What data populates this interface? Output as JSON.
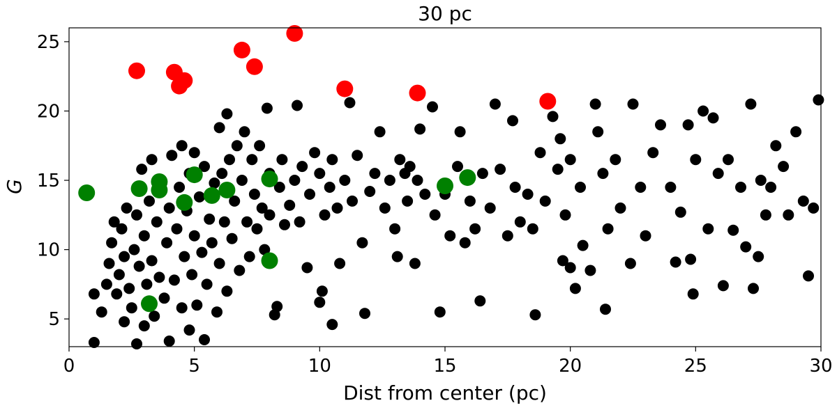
{
  "chart_data": {
    "type": "scatter",
    "title": "30 pc",
    "xlabel": "Dist from center (pc)",
    "ylabel": "G",
    "xlim": [
      0,
      30
    ],
    "ylim": [
      3,
      26
    ],
    "xticks": [
      0,
      5,
      10,
      15,
      20,
      25,
      30
    ],
    "yticks": [
      5,
      10,
      15,
      20,
      25
    ],
    "grid": false,
    "series": [
      {
        "color": "#000000",
        "marker_size": "medium",
        "points": [
          [
            1.0,
            3.3
          ],
          [
            1.0,
            6.8
          ],
          [
            1.3,
            5.5
          ],
          [
            1.5,
            7.5
          ],
          [
            1.6,
            9.0
          ],
          [
            1.7,
            10.5
          ],
          [
            1.8,
            12.0
          ],
          [
            1.9,
            6.8
          ],
          [
            2.0,
            8.2
          ],
          [
            2.1,
            11.5
          ],
          [
            2.2,
            4.8
          ],
          [
            2.2,
            9.5
          ],
          [
            2.3,
            13.0
          ],
          [
            2.4,
            7.2
          ],
          [
            2.5,
            5.8
          ],
          [
            2.6,
            10.0
          ],
          [
            2.7,
            3.2
          ],
          [
            2.7,
            12.5
          ],
          [
            2.8,
            8.8
          ],
          [
            2.9,
            15.8
          ],
          [
            3.0,
            4.5
          ],
          [
            3.0,
            11.0
          ],
          [
            3.1,
            7.5
          ],
          [
            3.2,
            13.5
          ],
          [
            3.3,
            9.2
          ],
          [
            3.3,
            16.5
          ],
          [
            3.4,
            5.2
          ],
          [
            3.5,
            12.0
          ],
          [
            3.6,
            8.0
          ],
          [
            3.7,
            14.8
          ],
          [
            3.8,
            6.5
          ],
          [
            3.9,
            10.5
          ],
          [
            4.0,
            3.4
          ],
          [
            4.0,
            13.0
          ],
          [
            4.1,
            16.8
          ],
          [
            4.2,
            7.8
          ],
          [
            4.3,
            11.5
          ],
          [
            4.4,
            14.5
          ],
          [
            4.5,
            5.8
          ],
          [
            4.5,
            17.5
          ],
          [
            4.6,
            9.5
          ],
          [
            4.7,
            12.8
          ],
          [
            4.8,
            4.2
          ],
          [
            4.8,
            15.5
          ],
          [
            4.9,
            8.2
          ],
          [
            5.0,
            11.0
          ],
          [
            5.0,
            17.0
          ],
          [
            5.1,
            6.0
          ],
          [
            5.2,
            13.8
          ],
          [
            5.3,
            9.8
          ],
          [
            5.4,
            3.5
          ],
          [
            5.4,
            16.0
          ],
          [
            5.5,
            7.5
          ],
          [
            5.6,
            12.2
          ],
          [
            5.7,
            10.5
          ],
          [
            5.8,
            14.8
          ],
          [
            5.9,
            5.5
          ],
          [
            6.0,
            18.8
          ],
          [
            6.0,
            9.0
          ],
          [
            6.1,
            15.5
          ],
          [
            6.2,
            12.0
          ],
          [
            6.3,
            19.8
          ],
          [
            6.3,
            7.0
          ],
          [
            6.4,
            16.5
          ],
          [
            6.5,
            10.8
          ],
          [
            6.6,
            13.5
          ],
          [
            6.7,
            17.5
          ],
          [
            6.8,
            8.5
          ],
          [
            6.9,
            15.0
          ],
          [
            7.0,
            18.5
          ],
          [
            7.1,
            12.0
          ],
          [
            7.2,
            9.5
          ],
          [
            7.3,
            16.5
          ],
          [
            7.4,
            14.0
          ],
          [
            7.5,
            11.5
          ],
          [
            7.6,
            17.5
          ],
          [
            7.7,
            13.0
          ],
          [
            7.8,
            10.0
          ],
          [
            7.9,
            20.2
          ],
          [
            8.0,
            15.5
          ],
          [
            8.0,
            12.5
          ],
          [
            8.2,
            5.3
          ],
          [
            8.3,
            5.9
          ],
          [
            8.4,
            14.5
          ],
          [
            8.5,
            16.5
          ],
          [
            8.6,
            11.8
          ],
          [
            8.8,
            13.2
          ],
          [
            9.0,
            15.0
          ],
          [
            9.1,
            20.4
          ],
          [
            9.2,
            12.0
          ],
          [
            9.3,
            16.0
          ],
          [
            9.5,
            8.7
          ],
          [
            9.6,
            14.0
          ],
          [
            9.8,
            17.0
          ],
          [
            10.0,
            6.2
          ],
          [
            10.0,
            15.5
          ],
          [
            10.1,
            7.0
          ],
          [
            10.2,
            12.5
          ],
          [
            10.4,
            14.5
          ],
          [
            10.5,
            4.6
          ],
          [
            10.5,
            16.5
          ],
          [
            10.7,
            13.0
          ],
          [
            10.8,
            9.0
          ],
          [
            11.0,
            15.0
          ],
          [
            11.2,
            20.6
          ],
          [
            11.3,
            13.5
          ],
          [
            11.5,
            16.8
          ],
          [
            11.7,
            10.5
          ],
          [
            11.8,
            5.4
          ],
          [
            12.0,
            14.2
          ],
          [
            12.2,
            15.5
          ],
          [
            12.4,
            18.5
          ],
          [
            12.6,
            13.0
          ],
          [
            12.8,
            15.0
          ],
          [
            13.0,
            11.5
          ],
          [
            13.1,
            9.5
          ],
          [
            13.2,
            16.5
          ],
          [
            13.4,
            15.5
          ],
          [
            13.5,
            13.5
          ],
          [
            13.6,
            16.0
          ],
          [
            13.8,
            9.0
          ],
          [
            13.9,
            15.0
          ],
          [
            14.0,
            18.7
          ],
          [
            14.2,
            14.0
          ],
          [
            14.5,
            20.3
          ],
          [
            14.6,
            12.5
          ],
          [
            14.8,
            5.5
          ],
          [
            15.0,
            14.0
          ],
          [
            15.2,
            11.0
          ],
          [
            15.5,
            16.0
          ],
          [
            15.6,
            18.5
          ],
          [
            15.8,
            10.5
          ],
          [
            16.0,
            13.5
          ],
          [
            16.2,
            11.5
          ],
          [
            16.4,
            6.3
          ],
          [
            16.5,
            15.5
          ],
          [
            16.8,
            13.0
          ],
          [
            17.0,
            20.5
          ],
          [
            17.2,
            15.8
          ],
          [
            17.5,
            11.0
          ],
          [
            17.7,
            19.3
          ],
          [
            17.8,
            14.5
          ],
          [
            18.0,
            12.0
          ],
          [
            18.3,
            14.0
          ],
          [
            18.5,
            11.5
          ],
          [
            18.6,
            5.3
          ],
          [
            18.8,
            17.0
          ],
          [
            19.0,
            13.5
          ],
          [
            19.3,
            19.6
          ],
          [
            19.5,
            15.8
          ],
          [
            19.6,
            18.0
          ],
          [
            19.7,
            9.2
          ],
          [
            19.8,
            12.5
          ],
          [
            20.0,
            16.5
          ],
          [
            20.0,
            8.7
          ],
          [
            20.2,
            7.2
          ],
          [
            20.4,
            14.5
          ],
          [
            20.5,
            10.3
          ],
          [
            20.8,
            8.5
          ],
          [
            21.0,
            20.5
          ],
          [
            21.1,
            18.5
          ],
          [
            21.3,
            15.5
          ],
          [
            21.4,
            5.7
          ],
          [
            21.5,
            11.5
          ],
          [
            21.8,
            16.5
          ],
          [
            22.0,
            13.0
          ],
          [
            22.4,
            9.0
          ],
          [
            22.5,
            20.5
          ],
          [
            22.8,
            14.5
          ],
          [
            23.0,
            11.0
          ],
          [
            23.3,
            17.0
          ],
          [
            23.6,
            19.0
          ],
          [
            24.0,
            14.5
          ],
          [
            24.2,
            9.1
          ],
          [
            24.4,
            12.7
          ],
          [
            24.7,
            19.0
          ],
          [
            24.8,
            9.3
          ],
          [
            24.9,
            6.8
          ],
          [
            25.0,
            16.5
          ],
          [
            25.3,
            20.0
          ],
          [
            25.5,
            11.5
          ],
          [
            25.7,
            19.5
          ],
          [
            25.9,
            15.5
          ],
          [
            26.1,
            7.4
          ],
          [
            26.3,
            16.5
          ],
          [
            26.5,
            11.4
          ],
          [
            26.8,
            14.5
          ],
          [
            27.0,
            10.2
          ],
          [
            27.2,
            20.5
          ],
          [
            27.3,
            7.2
          ],
          [
            27.5,
            9.5
          ],
          [
            27.6,
            15.0
          ],
          [
            27.8,
            12.5
          ],
          [
            28.0,
            14.5
          ],
          [
            28.2,
            17.5
          ],
          [
            28.5,
            16.0
          ],
          [
            28.7,
            12.5
          ],
          [
            29.0,
            18.5
          ],
          [
            29.3,
            13.5
          ],
          [
            29.5,
            8.1
          ],
          [
            29.7,
            13.0
          ],
          [
            29.9,
            20.8
          ]
        ]
      },
      {
        "color": "#ff0000",
        "marker_size": "large",
        "points": [
          [
            2.7,
            22.9
          ],
          [
            4.2,
            22.8
          ],
          [
            4.6,
            22.2
          ],
          [
            4.4,
            21.8
          ],
          [
            6.9,
            24.4
          ],
          [
            7.4,
            23.2
          ],
          [
            9.0,
            25.6
          ],
          [
            11.0,
            21.6
          ],
          [
            13.9,
            21.3
          ],
          [
            19.1,
            20.7
          ]
        ]
      },
      {
        "color": "#008000",
        "marker_size": "large",
        "points": [
          [
            0.7,
            14.1
          ],
          [
            2.8,
            14.4
          ],
          [
            3.6,
            14.9
          ],
          [
            3.6,
            14.3
          ],
          [
            4.6,
            13.4
          ],
          [
            5.0,
            15.4
          ],
          [
            5.7,
            13.9
          ],
          [
            6.3,
            14.3
          ],
          [
            8.0,
            15.1
          ],
          [
            8.0,
            9.2
          ],
          [
            3.2,
            6.1
          ],
          [
            15.0,
            14.6
          ],
          [
            15.9,
            15.2
          ]
        ]
      }
    ]
  }
}
